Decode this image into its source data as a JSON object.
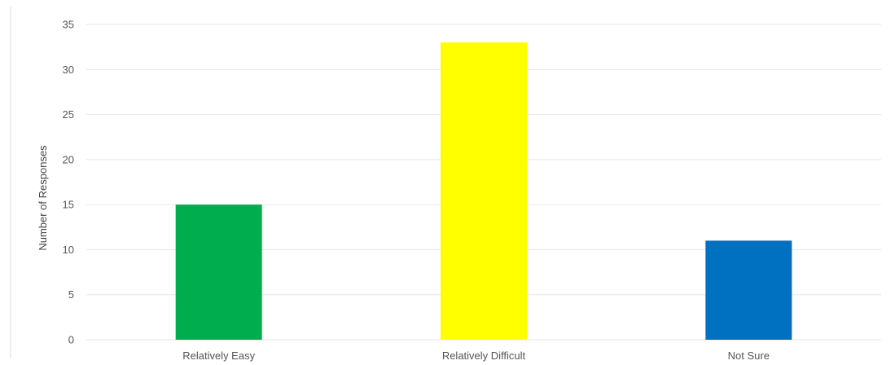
{
  "chart_data": {
    "type": "bar",
    "title": "",
    "xlabel": "",
    "ylabel": "Number of Responses",
    "categories": [
      "Relatively Easy",
      "Relatively Difficult",
      "Not Sure"
    ],
    "values": [
      15,
      33,
      11
    ],
    "colors": [
      "#00ad4e",
      "#ffff00",
      "#0070c0"
    ],
    "ylim": [
      0,
      35
    ],
    "yticks": [
      0,
      5,
      10,
      15,
      20,
      25,
      30,
      35
    ],
    "grid": true,
    "legend": "none"
  }
}
